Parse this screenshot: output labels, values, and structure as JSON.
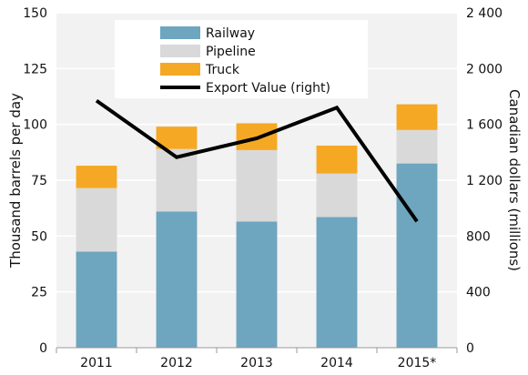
{
  "chart_data": {
    "type": "bar",
    "stacked": true,
    "categories": [
      "2011",
      "2012",
      "2013",
      "2014",
      "2015*"
    ],
    "series": [
      {
        "name": "Railway",
        "type": "bar",
        "axis": "left",
        "values": [
          43,
          61,
          56.5,
          58.5,
          82.5
        ],
        "color": "#6ea5bf"
      },
      {
        "name": "Pipeline",
        "type": "bar",
        "axis": "left",
        "values": [
          28.5,
          28,
          32,
          19.5,
          15
        ],
        "color": "#d9d9d9"
      },
      {
        "name": "Truck",
        "type": "bar",
        "axis": "left",
        "values": [
          10,
          10,
          12,
          12.5,
          11.5
        ],
        "color": "#f5a823"
      },
      {
        "name": "Export Value (right)",
        "type": "line",
        "axis": "right",
        "values": [
          1770,
          1365,
          1500,
          1720,
          905
        ],
        "color": "#000000"
      }
    ],
    "ylabel": "Thousand barrels per day",
    "y2label": "Canadian dollars (millions)",
    "ylim": [
      0,
      150
    ],
    "y2lim": [
      0,
      2400
    ],
    "yticks": [
      "0",
      "25",
      "50",
      "75",
      "100",
      "125",
      "150"
    ],
    "y2ticks": [
      "0",
      "400",
      "800",
      "1 200",
      "1 600",
      "2 000",
      "2 400"
    ],
    "grid": true,
    "legend_position": "top-center"
  }
}
